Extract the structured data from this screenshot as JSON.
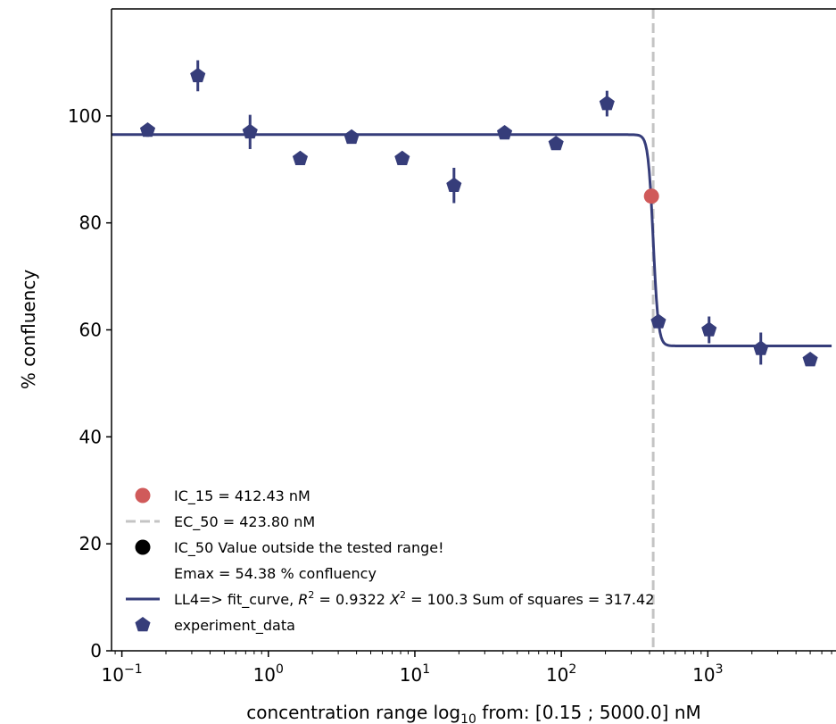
{
  "chart_data": {
    "type": "scatter",
    "xlabel": "concentration range log₁₀ from: [0.15 ; 5000.0] nM",
    "ylabel": "% confluency",
    "xscale": "log",
    "xlim": [
      0.085,
      7500
    ],
    "ylim": [
      0,
      120
    ],
    "x_ticks": [
      0.1,
      1,
      10,
      100,
      1000
    ],
    "x_tick_labels": [
      {
        "base": "10",
        "exp": "−1"
      },
      {
        "base": "10",
        "exp": "0"
      },
      {
        "base": "10",
        "exp": "1"
      },
      {
        "base": "10",
        "exp": "2"
      },
      {
        "base": "10",
        "exp": "3"
      }
    ],
    "y_ticks": [
      0,
      20,
      40,
      60,
      80,
      100
    ],
    "y_tick_labels": [
      "0",
      "20",
      "40",
      "60",
      "80",
      "100"
    ],
    "grid": false,
    "legend_position": "lower-left",
    "series": [
      {
        "name": "experiment_data",
        "kind": "scatter_errorbar",
        "marker": "pentagon",
        "color": "#363D7A",
        "x": [
          0.15,
          0.33,
          0.75,
          1.65,
          3.7,
          8.2,
          18.5,
          41,
          92,
          205,
          460,
          1020,
          2300,
          5000
        ],
        "y": [
          97.3,
          107.5,
          97.0,
          92.0,
          96.0,
          92.0,
          87.0,
          96.8,
          94.8,
          102.3,
          61.5,
          60.0,
          56.5,
          54.4
        ],
        "yerr": [
          1.2,
          2.9,
          3.2,
          0.6,
          0.8,
          0.6,
          3.3,
          0.5,
          0.4,
          2.4,
          0.5,
          2.5,
          3.0,
          0.4
        ]
      },
      {
        "name": "LL4=> fit_curve, R² = 0.9322 X² = 100.3 Sum of squares = 317.42",
        "kind": "fit_line",
        "color": "#363D7A",
        "bottom": 57.0,
        "top": 96.5,
        "ec50": 423.8,
        "hill": 25,
        "x_range": [
          0.085,
          7000
        ]
      }
    ],
    "ic15": {
      "x": 412.43,
      "y": 85.0,
      "color": "#D05A5A"
    },
    "ec50_line": {
      "x": 423.8,
      "color": "#C4C4C4"
    },
    "legend": [
      {
        "id": "ic15",
        "symbol": "circle",
        "color": "#D05A5A",
        "label": "IC_15 = 412.43 nM"
      },
      {
        "id": "ec50",
        "symbol": "dash",
        "color": "#C4C4C4",
        "label": "EC_50 = 423.80 nM"
      },
      {
        "id": "ic50",
        "symbol": "circle",
        "color": "#000000",
        "label": "IC_50 Value outside the tested range!"
      },
      {
        "id": "emax",
        "symbol": "none",
        "color": "#000000",
        "label": "Emax = 54.38 % confluency"
      },
      {
        "id": "fit",
        "symbol": "line",
        "color": "#363D7A",
        "label": "LL4=> fit_curve, R² = 0.9322 X² = 100.3 Sum of squares = 317.42"
      },
      {
        "id": "data",
        "symbol": "pentagon",
        "color": "#363D7A",
        "label": "experiment_data"
      }
    ]
  }
}
